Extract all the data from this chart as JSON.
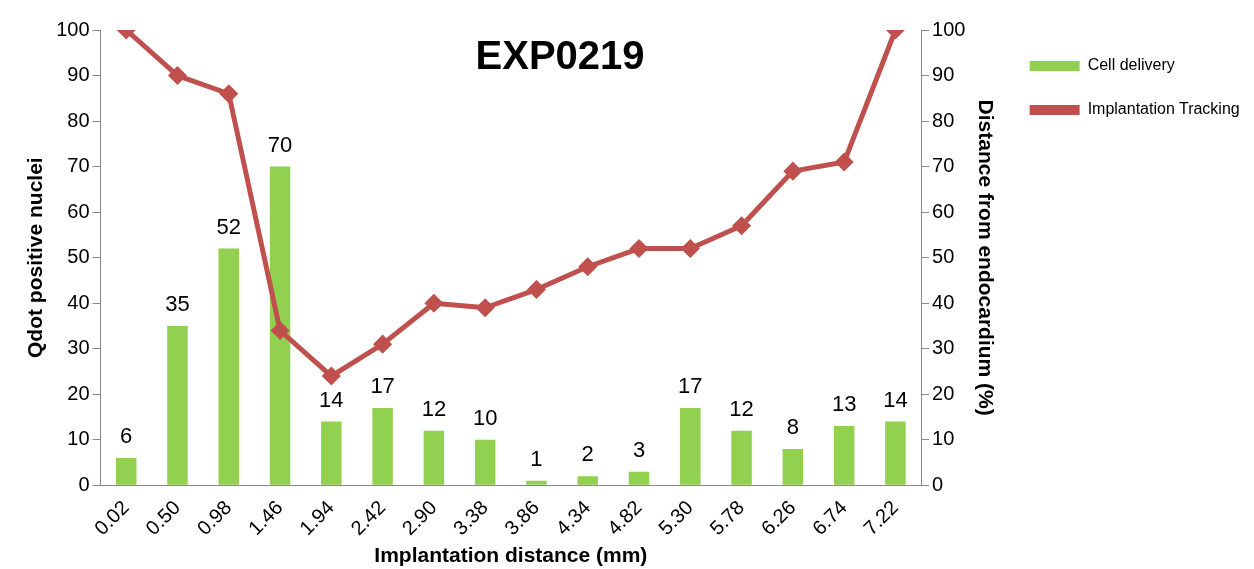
{
  "chart_data": {
    "type": "bar",
    "title": "EXP0219",
    "xlabel": "Implantation distance (mm)",
    "ylabel": "Qdot positive nuclei",
    "y2label": "Distance from endocardium (%)",
    "categories": [
      "0.02",
      "0.50",
      "0.98",
      "1.46",
      "1.94",
      "2.42",
      "2.90",
      "3.38",
      "3.86",
      "4.34",
      "4.82",
      "5.30",
      "5.78",
      "6.26",
      "6.74",
      "7.22"
    ],
    "series": [
      {
        "name": "Cell delivery",
        "color": "#92d050",
        "values": [
          6,
          35,
          52,
          70,
          14,
          17,
          12,
          10,
          1,
          2,
          3,
          17,
          12,
          8,
          13,
          14
        ],
        "value_labels": [
          "6",
          "35",
          "52",
          "70",
          "14",
          "17",
          "12",
          "10",
          "1",
          "2",
          "3",
          "17",
          "12",
          "8",
          "13",
          "14"
        ]
      },
      {
        "name": "Implantation Tracking",
        "type": "line",
        "axis": "y2",
        "color": "#c0504d",
        "marker": "diamond",
        "values": [
          100,
          90,
          86,
          34,
          24,
          31,
          40,
          39,
          43,
          48,
          52,
          52,
          57,
          69,
          71,
          100
        ]
      }
    ],
    "ylim": [
      0,
      100
    ],
    "yticks": [
      0,
      10,
      20,
      30,
      40,
      50,
      60,
      70,
      80,
      90,
      100
    ],
    "y2lim": [
      0,
      100
    ],
    "y2ticks": [
      0,
      10,
      20,
      30,
      40,
      50,
      60,
      70,
      80,
      90,
      100
    ],
    "grid": false,
    "legend": "top right"
  }
}
